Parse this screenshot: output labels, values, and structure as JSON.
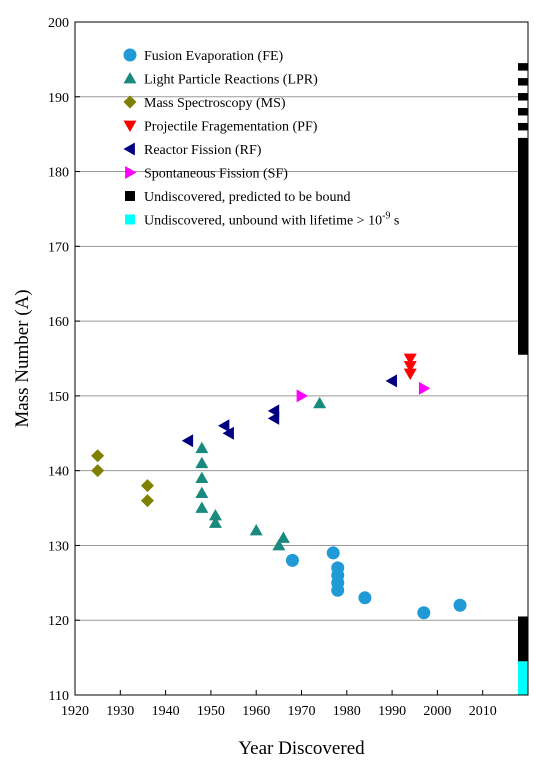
{
  "chart_data": {
    "type": "scatter",
    "title": "",
    "xlabel": "Year Discovered",
    "ylabel": "Mass Number (A)",
    "xlim": [
      1920,
      2020
    ],
    "ylim": [
      110,
      200
    ],
    "xticks": [
      1920,
      1930,
      1940,
      1950,
      1960,
      1970,
      1980,
      1990,
      2000,
      2010
    ],
    "yticks": [
      110,
      120,
      130,
      140,
      150,
      160,
      170,
      180,
      190,
      200
    ],
    "grid": "horizontal",
    "legend_position": "top-left",
    "series": [
      {
        "name": "Fusion Evaporation (FE)",
        "marker": "circle",
        "color": "#1f9ad6",
        "points": [
          [
            1968,
            128
          ],
          [
            1977,
            129
          ],
          [
            1978,
            127
          ],
          [
            1978,
            126
          ],
          [
            1978,
            125
          ],
          [
            1978,
            124
          ],
          [
            1984,
            123
          ],
          [
            1997,
            121
          ],
          [
            2005,
            122
          ]
        ]
      },
      {
        "name": "Light Particle Reactions (LPR)",
        "marker": "triangle-up",
        "color": "#1a8a7e",
        "points": [
          [
            1948,
            143
          ],
          [
            1948,
            141
          ],
          [
            1948,
            139
          ],
          [
            1948,
            137
          ],
          [
            1948,
            135
          ],
          [
            1951,
            134
          ],
          [
            1951,
            133
          ],
          [
            1960,
            132
          ],
          [
            1965,
            130
          ],
          [
            1966,
            131
          ],
          [
            1974,
            149
          ]
        ]
      },
      {
        "name": "Mass Spectroscopy (MS)",
        "marker": "diamond",
        "color": "#808000",
        "points": [
          [
            1925,
            142
          ],
          [
            1925,
            140
          ],
          [
            1936,
            138
          ],
          [
            1936,
            136
          ]
        ]
      },
      {
        "name": "Projectile Fragementation (PF)",
        "marker": "triangle-down",
        "color": "#ff0000",
        "points": [
          [
            1994,
            155
          ],
          [
            1994,
            154
          ],
          [
            1994,
            153
          ]
        ]
      },
      {
        "name": "Reactor Fission (RF)",
        "marker": "triangle-left",
        "color": "#000080",
        "points": [
          [
            1945,
            144
          ],
          [
            1953,
            146
          ],
          [
            1954,
            145
          ],
          [
            1964,
            148
          ],
          [
            1964,
            147
          ],
          [
            1990,
            152
          ]
        ]
      },
      {
        "name": "Spontaneous Fission (SF)",
        "marker": "triangle-right",
        "color": "#ff00ff",
        "points": [
          [
            1970,
            150
          ],
          [
            1997,
            151
          ]
        ]
      }
    ],
    "bars": [
      {
        "name": "Undiscovered, predicted to be bound",
        "marker": "square",
        "color": "#000000",
        "segments": [
          [
            155.5,
            184.5
          ],
          [
            185.5,
            186.5
          ],
          [
            187.5,
            188.5
          ],
          [
            189.5,
            190.5
          ],
          [
            191.5,
            192.5
          ],
          [
            193.5,
            194.5
          ],
          [
            114.5,
            120.5
          ]
        ]
      },
      {
        "name": "Undiscovered, unbound with lifetime > 10-9 s",
        "marker": "square",
        "color": "#00ffff",
        "segments": [
          [
            110,
            114.5
          ]
        ]
      }
    ],
    "legend": [
      {
        "label": "Fusion Evaporation (FE)",
        "marker": "circle",
        "color": "#1f9ad6"
      },
      {
        "label": "Light Particle Reactions (LPR)",
        "marker": "triangle-up",
        "color": "#1a8a7e"
      },
      {
        "label": "Mass Spectroscopy (MS)",
        "marker": "diamond",
        "color": "#808000"
      },
      {
        "label": "Projectile Fragementation (PF)",
        "marker": "triangle-down",
        "color": "#ff0000"
      },
      {
        "label": "Reactor Fission (RF)",
        "marker": "triangle-left",
        "color": "#000080"
      },
      {
        "label": "Spontaneous Fission (SF)",
        "marker": "triangle-right",
        "color": "#ff00ff"
      },
      {
        "label": "Undiscovered, predicted to be bound",
        "marker": "square",
        "color": "#000000"
      },
      {
        "label_prefix": "Undiscovered, unbound with lifetime > 10",
        "label_sup": "-9",
        "label_suffix": " s",
        "marker": "square",
        "color": "#00ffff"
      }
    ]
  }
}
